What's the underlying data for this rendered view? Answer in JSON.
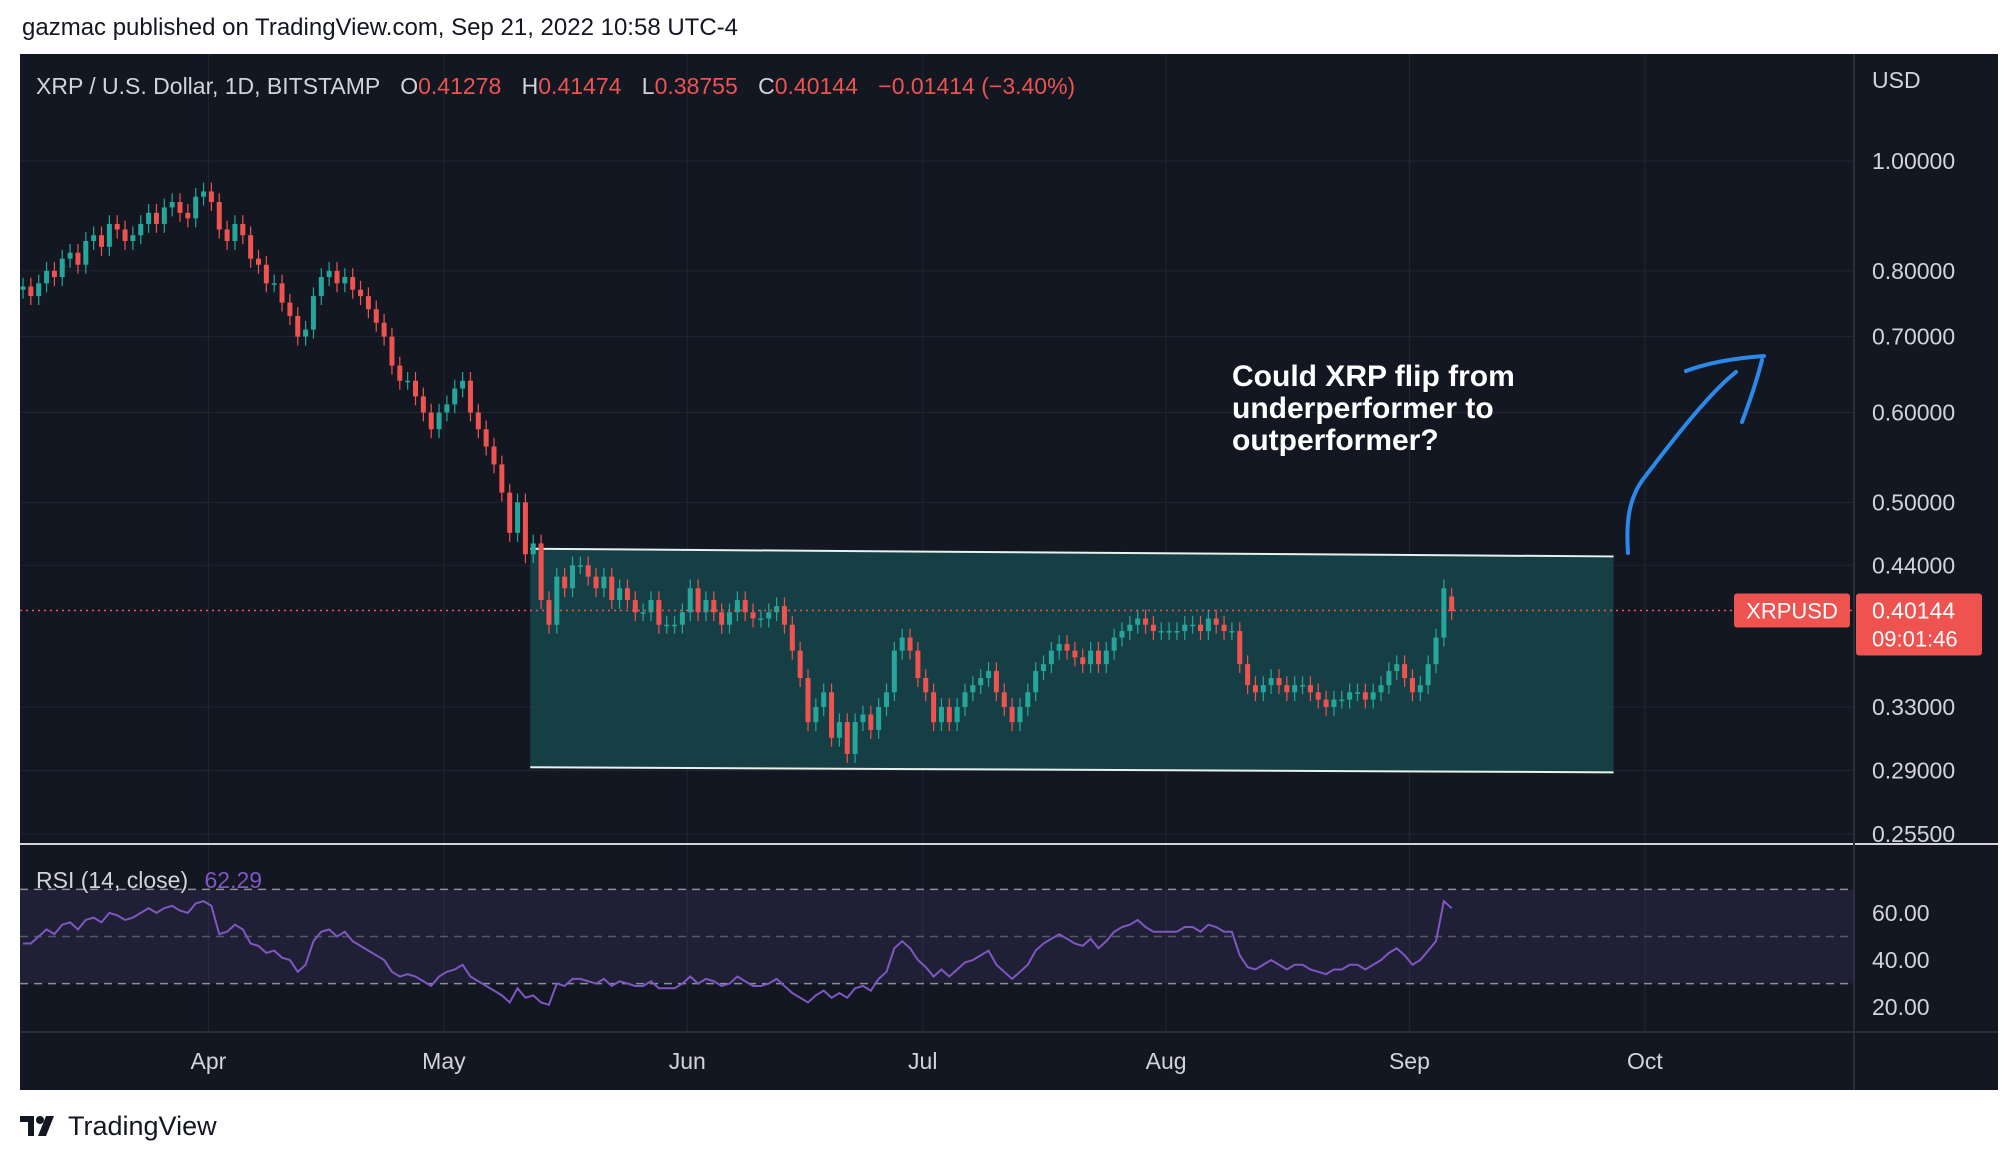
{
  "header": {
    "text": "gazmac published on TradingView.com, Sep 21, 2022 10:58 UTC-4"
  },
  "legend": {
    "symbol": "XRP / U.S. Dollar, 1D, BITSTAMP",
    "o_label": "O",
    "o_value": "0.41278",
    "h_label": "H",
    "h_value": "0.41474",
    "l_label": "L",
    "l_value": "0.38755",
    "c_label": "C",
    "c_value": "0.40144",
    "change": "−0.01414 (−3.40%)"
  },
  "price_axis": {
    "currency": "USD",
    "ticks": [
      {
        "value": 1.0,
        "label": "1.00000"
      },
      {
        "value": 0.8,
        "label": "0.80000"
      },
      {
        "value": 0.7,
        "label": "0.70000"
      },
      {
        "value": 0.6,
        "label": "0.60000"
      },
      {
        "value": 0.5,
        "label": "0.50000"
      },
      {
        "value": 0.44,
        "label": "0.44000"
      },
      {
        "value": 0.33,
        "label": "0.33000"
      },
      {
        "value": 0.29,
        "label": "0.29000"
      },
      {
        "value": 0.255,
        "label": "0.25500"
      }
    ],
    "scale": "log"
  },
  "price_label": {
    "symbol": "XRPUSD",
    "price": "0.40144",
    "countdown": "09:01:46",
    "value": 0.40144
  },
  "annotation": {
    "lines": [
      "Could XRP flip from",
      "underperformer to",
      "outperformer?"
    ],
    "arrow": "hand-drawn-blue-arrow-up"
  },
  "rsi": {
    "label": "RSI (14, close)",
    "value_label": "62.29",
    "ticks": [
      {
        "value": 60,
        "label": "60.00"
      },
      {
        "value": 40,
        "label": "40.00"
      },
      {
        "value": 20,
        "label": "20.00"
      }
    ],
    "bands": [
      70,
      50,
      30
    ]
  },
  "time_axis": {
    "ticks": [
      {
        "label": "Apr",
        "date": "2022-04-01"
      },
      {
        "label": "May",
        "date": "2022-05-01"
      },
      {
        "label": "Jun",
        "date": "2022-06-01"
      },
      {
        "label": "Jul",
        "date": "2022-07-01"
      },
      {
        "label": "Aug",
        "date": "2022-08-01"
      },
      {
        "label": "Sep",
        "date": "2022-09-01"
      },
      {
        "label": "Oct",
        "date": "2022-10-01"
      }
    ]
  },
  "footer": {
    "brand": "TradingView"
  },
  "colors": {
    "background": "#131722",
    "grid": "#222631",
    "up": "#26a69a",
    "down": "#ef5350",
    "rsi_line": "#7e57c2",
    "range_fill": "#17474b",
    "range_border": "#e6f2ee",
    "annotation_arrow": "#2b8ae9",
    "text_axis": "#d1d4dc"
  },
  "chart_data": {
    "type": "candlestick",
    "title": "XRP / U.S. Dollar, 1D, BITSTAMP",
    "y_scale": "log",
    "ylim": [
      0.255,
      1.1
    ],
    "start_date": "2022-03-08",
    "end_date": "2022-09-21",
    "close": [
      0.775,
      0.76,
      0.78,
      0.8,
      0.79,
      0.82,
      0.83,
      0.81,
      0.85,
      0.86,
      0.84,
      0.88,
      0.87,
      0.85,
      0.86,
      0.88,
      0.9,
      0.88,
      0.91,
      0.92,
      0.9,
      0.89,
      0.93,
      0.94,
      0.92,
      0.87,
      0.85,
      0.88,
      0.86,
      0.82,
      0.81,
      0.78,
      0.78,
      0.75,
      0.73,
      0.7,
      0.71,
      0.76,
      0.79,
      0.8,
      0.78,
      0.79,
      0.77,
      0.76,
      0.74,
      0.72,
      0.7,
      0.66,
      0.64,
      0.64,
      0.62,
      0.6,
      0.58,
      0.6,
      0.61,
      0.63,
      0.64,
      0.6,
      0.58,
      0.56,
      0.54,
      0.51,
      0.47,
      0.5,
      0.45,
      0.46,
      0.41,
      0.39,
      0.43,
      0.42,
      0.44,
      0.44,
      0.43,
      0.42,
      0.43,
      0.41,
      0.42,
      0.41,
      0.4,
      0.4,
      0.41,
      0.39,
      0.39,
      0.39,
      0.4,
      0.42,
      0.4,
      0.41,
      0.4,
      0.39,
      0.4,
      0.41,
      0.4,
      0.395,
      0.395,
      0.4,
      0.405,
      0.39,
      0.37,
      0.35,
      0.32,
      0.33,
      0.34,
      0.31,
      0.32,
      0.3,
      0.32,
      0.325,
      0.315,
      0.33,
      0.34,
      0.37,
      0.38,
      0.37,
      0.35,
      0.34,
      0.32,
      0.33,
      0.32,
      0.33,
      0.34,
      0.345,
      0.35,
      0.355,
      0.34,
      0.33,
      0.32,
      0.33,
      0.34,
      0.355,
      0.36,
      0.37,
      0.375,
      0.37,
      0.365,
      0.36,
      0.37,
      0.36,
      0.37,
      0.38,
      0.385,
      0.39,
      0.395,
      0.39,
      0.385,
      0.385,
      0.385,
      0.385,
      0.39,
      0.39,
      0.385,
      0.395,
      0.39,
      0.385,
      0.385,
      0.36,
      0.345,
      0.34,
      0.345,
      0.35,
      0.345,
      0.34,
      0.345,
      0.345,
      0.34,
      0.335,
      0.33,
      0.335,
      0.335,
      0.34,
      0.34,
      0.335,
      0.34,
      0.345,
      0.355,
      0.36,
      0.35,
      0.34,
      0.345,
      0.36,
      0.38,
      0.42,
      0.401
    ],
    "open": [
      0.77,
      0.775,
      0.76,
      0.78,
      0.8,
      0.79,
      0.82,
      0.83,
      0.81,
      0.85,
      0.86,
      0.84,
      0.88,
      0.87,
      0.85,
      0.86,
      0.88,
      0.9,
      0.88,
      0.91,
      0.92,
      0.9,
      0.89,
      0.93,
      0.94,
      0.92,
      0.87,
      0.85,
      0.88,
      0.86,
      0.82,
      0.81,
      0.78,
      0.78,
      0.75,
      0.73,
      0.7,
      0.71,
      0.76,
      0.79,
      0.8,
      0.78,
      0.79,
      0.77,
      0.76,
      0.74,
      0.72,
      0.7,
      0.66,
      0.64,
      0.64,
      0.62,
      0.6,
      0.58,
      0.6,
      0.61,
      0.63,
      0.64,
      0.6,
      0.58,
      0.56,
      0.54,
      0.51,
      0.47,
      0.5,
      0.45,
      0.46,
      0.41,
      0.39,
      0.43,
      0.42,
      0.44,
      0.44,
      0.43,
      0.42,
      0.43,
      0.41,
      0.42,
      0.41,
      0.4,
      0.4,
      0.41,
      0.39,
      0.39,
      0.39,
      0.4,
      0.42,
      0.4,
      0.41,
      0.4,
      0.39,
      0.4,
      0.41,
      0.4,
      0.395,
      0.395,
      0.4,
      0.405,
      0.39,
      0.37,
      0.35,
      0.32,
      0.33,
      0.34,
      0.31,
      0.32,
      0.3,
      0.32,
      0.325,
      0.315,
      0.33,
      0.34,
      0.37,
      0.38,
      0.37,
      0.35,
      0.34,
      0.32,
      0.33,
      0.32,
      0.33,
      0.34,
      0.345,
      0.35,
      0.355,
      0.34,
      0.33,
      0.32,
      0.33,
      0.34,
      0.355,
      0.36,
      0.37,
      0.375,
      0.37,
      0.365,
      0.36,
      0.37,
      0.36,
      0.37,
      0.38,
      0.385,
      0.39,
      0.395,
      0.39,
      0.385,
      0.385,
      0.385,
      0.385,
      0.39,
      0.39,
      0.385,
      0.395,
      0.39,
      0.385,
      0.385,
      0.36,
      0.345,
      0.34,
      0.345,
      0.35,
      0.345,
      0.34,
      0.345,
      0.345,
      0.34,
      0.335,
      0.33,
      0.335,
      0.335,
      0.34,
      0.34,
      0.335,
      0.34,
      0.345,
      0.355,
      0.36,
      0.35,
      0.34,
      0.345,
      0.36,
      0.38,
      0.413
    ],
    "channel": {
      "top": [
        {
          "date": "2022-05-12",
          "value": 0.455
        },
        {
          "date": "2022-09-27",
          "value": 0.448
        }
      ],
      "bottom": [
        {
          "date": "2022-05-12",
          "value": 0.292
        },
        {
          "date": "2022-09-27",
          "value": 0.289
        }
      ]
    },
    "rsi_values": [
      47,
      47,
      50,
      53,
      51,
      55,
      56,
      53,
      57,
      58,
      56,
      60,
      59,
      57,
      58,
      60,
      62,
      60,
      62,
      63,
      61,
      60,
      64,
      65,
      63,
      51,
      52,
      55,
      53,
      47,
      46,
      43,
      44,
      41,
      40,
      35,
      38,
      48,
      52,
      53,
      50,
      52,
      48,
      46,
      44,
      42,
      40,
      35,
      33,
      34,
      33,
      31,
      29,
      33,
      35,
      36,
      38,
      33,
      31,
      29,
      27,
      25,
      22,
      28,
      24,
      25,
      22,
      21,
      30,
      29,
      32,
      32,
      31,
      30,
      32,
      29,
      31,
      30,
      29,
      29,
      31,
      28,
      28,
      28,
      30,
      33,
      30,
      32,
      31,
      29,
      30,
      33,
      31,
      29,
      29,
      30,
      32,
      29,
      26,
      24,
      22,
      25,
      27,
      24,
      26,
      24,
      28,
      29,
      27,
      32,
      35,
      45,
      48,
      45,
      40,
      37,
      33,
      36,
      33,
      36,
      39,
      40,
      42,
      44,
      38,
      35,
      32,
      35,
      38,
      44,
      47,
      49,
      51,
      49,
      47,
      46,
      49,
      45,
      48,
      52,
      54,
      55,
      57,
      54,
      52,
      52,
      52,
      52,
      54,
      54,
      52,
      55,
      54,
      52,
      52,
      42,
      37,
      36,
      38,
      40,
      38,
      36,
      38,
      38,
      36,
      35,
      34,
      36,
      36,
      38,
      38,
      36,
      38,
      40,
      43,
      45,
      42,
      38,
      40,
      44,
      48,
      65,
      62
    ]
  }
}
